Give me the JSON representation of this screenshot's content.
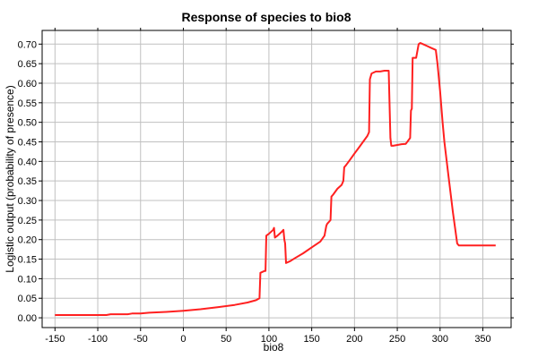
{
  "chart_data": {
    "type": "line",
    "title": "Response of species to bio8",
    "xlabel": "bio8",
    "ylabel": "Logistic output (probability of presence)",
    "xlim": [
      -165,
      383
    ],
    "ylim": [
      -0.025,
      0.735
    ],
    "x_ticks": [
      -150,
      -100,
      -50,
      0,
      50,
      100,
      150,
      200,
      250,
      300,
      350
    ],
    "y_ticks": [
      "0.00",
      "0.05",
      "0.10",
      "0.15",
      "0.20",
      "0.25",
      "0.30",
      "0.35",
      "0.40",
      "0.45",
      "0.50",
      "0.55",
      "0.60",
      "0.65",
      "0.70"
    ],
    "grid": true,
    "line_color": "#ff2020",
    "series": [
      {
        "x": [
          -150,
          -90,
          -85,
          -65,
          -60,
          -50,
          -40,
          -20,
          0,
          20,
          40,
          60,
          75,
          85,
          89,
          90,
          95,
          96,
          97,
          100,
          105,
          106,
          107,
          110,
          115,
          117,
          118,
          119,
          120,
          125,
          130,
          140,
          150,
          160,
          165,
          167,
          168,
          170,
          172,
          173,
          175,
          180,
          185,
          187,
          188,
          190,
          195,
          200,
          205,
          210,
          215,
          217,
          218,
          220,
          225,
          230,
          235,
          240,
          242,
          243,
          245,
          250,
          255,
          260,
          265,
          266,
          267,
          268,
          270,
          272,
          275,
          277,
          280,
          285,
          290,
          295,
          297,
          300,
          303,
          305,
          310,
          315,
          320,
          322,
          325,
          330,
          340,
          350,
          365
        ],
        "y": [
          0.007,
          0.007,
          0.009,
          0.009,
          0.011,
          0.011,
          0.013,
          0.015,
          0.018,
          0.022,
          0.027,
          0.033,
          0.039,
          0.045,
          0.05,
          0.115,
          0.12,
          0.12,
          0.21,
          0.215,
          0.225,
          0.23,
          0.205,
          0.21,
          0.22,
          0.225,
          0.2,
          0.19,
          0.14,
          0.145,
          0.152,
          0.165,
          0.18,
          0.195,
          0.21,
          0.235,
          0.24,
          0.245,
          0.25,
          0.31,
          0.315,
          0.33,
          0.34,
          0.35,
          0.385,
          0.39,
          0.405,
          0.42,
          0.435,
          0.45,
          0.465,
          0.475,
          0.61,
          0.625,
          0.63,
          0.63,
          0.632,
          0.632,
          0.46,
          0.44,
          0.44,
          0.442,
          0.444,
          0.445,
          0.46,
          0.53,
          0.535,
          0.665,
          0.665,
          0.665,
          0.7,
          0.703,
          0.7,
          0.695,
          0.69,
          0.685,
          0.65,
          0.58,
          0.5,
          0.45,
          0.36,
          0.27,
          0.19,
          0.185,
          0.185,
          0.185,
          0.185,
          0.185,
          0.185
        ]
      }
    ]
  }
}
